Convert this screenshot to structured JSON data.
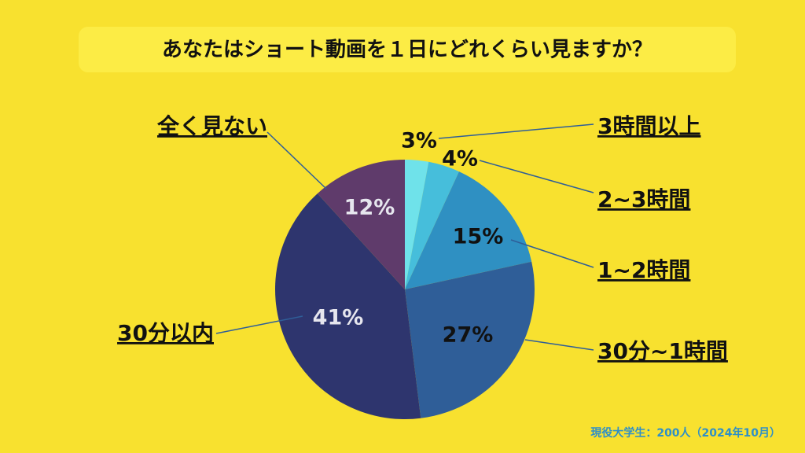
{
  "chart_data": {
    "type": "pie",
    "title": "あなたはショート動画を１日にどれくらい見ますか？",
    "note": "現役大学生：200人（2024年10月）",
    "categories": [
      "3時間以上",
      "2~3時間",
      "1~2時間",
      "30分~1時間",
      "30分以内",
      "全く見ない"
    ],
    "values": [
      3,
      4,
      15,
      27,
      41,
      12
    ],
    "value_labels": [
      "3%",
      "4%",
      "15%",
      "27%",
      "41%",
      "12%"
    ],
    "colors": [
      "#6fe2ea",
      "#46bedb",
      "#2f90c2",
      "#2f5e98",
      "#2e356e",
      "#5f3b6b"
    ]
  }
}
